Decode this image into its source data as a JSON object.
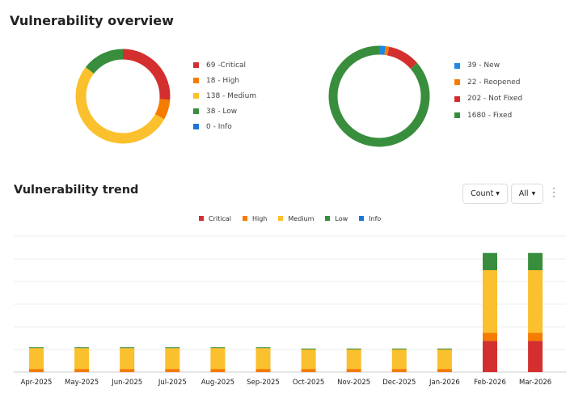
{
  "title": "Vulnerability overview",
  "severity": {
    "items": [
      {
        "label": "69 -Critical",
        "value": 69,
        "color": "#d32f2f"
      },
      {
        "label": "18 - High",
        "value": 18,
        "color": "#f57c00"
      },
      {
        "label": "138 - Medium",
        "value": 138,
        "color": "#fbc02d"
      },
      {
        "label": "38 - Low",
        "value": 38,
        "color": "#388e3c"
      },
      {
        "label": "0 - Info",
        "value": 0,
        "color": "#1976d2"
      }
    ]
  },
  "status": {
    "items": [
      {
        "label": "39 - New",
        "value": 39,
        "color": "#1e88e5"
      },
      {
        "label": "22 - Reopened",
        "value": 22,
        "color": "#f57c00"
      },
      {
        "label": "202 - Not Fixed",
        "value": 202,
        "color": "#d32f2f"
      },
      {
        "label": "1680 - Fixed",
        "value": 1680,
        "color": "#388e3c"
      }
    ]
  },
  "trend": {
    "title": "Vulnerability trend",
    "count_label": "Count",
    "all_label": "All"
  },
  "chart_data": {
    "type": "bar",
    "stacked": true,
    "grid": true,
    "legend": "top",
    "ylim": [
      0,
      300
    ],
    "categories": [
      "Apr-2025",
      "May-2025",
      "Jun-2025",
      "Jul-2025",
      "Aug-2025",
      "Sep-2025",
      "Oct-2025",
      "Nov-2025",
      "Dec-2025",
      "Jan-2026",
      "Feb-2026",
      "Mar-2026"
    ],
    "series": [
      {
        "name": "Critical",
        "color": "#d32f2f",
        "values": [
          0,
          0,
          0,
          0,
          0,
          0,
          0,
          0,
          0,
          0,
          69,
          69
        ]
      },
      {
        "name": "High",
        "color": "#f57c00",
        "values": [
          7,
          7,
          7,
          7,
          7,
          7,
          7,
          7,
          7,
          7,
          18,
          18
        ]
      },
      {
        "name": "Medium",
        "color": "#fbc02d",
        "values": [
          46,
          46,
          46,
          46,
          46,
          46,
          43,
          43,
          43,
          43,
          138,
          138
        ]
      },
      {
        "name": "Low",
        "color": "#388e3c",
        "values": [
          2,
          2,
          2,
          2,
          2,
          2,
          2,
          2,
          2,
          2,
          38,
          38
        ]
      },
      {
        "name": "Info",
        "color": "#1976d2",
        "values": [
          0,
          0,
          0,
          0,
          0,
          0,
          0,
          0,
          0,
          0,
          0,
          0
        ]
      }
    ]
  }
}
